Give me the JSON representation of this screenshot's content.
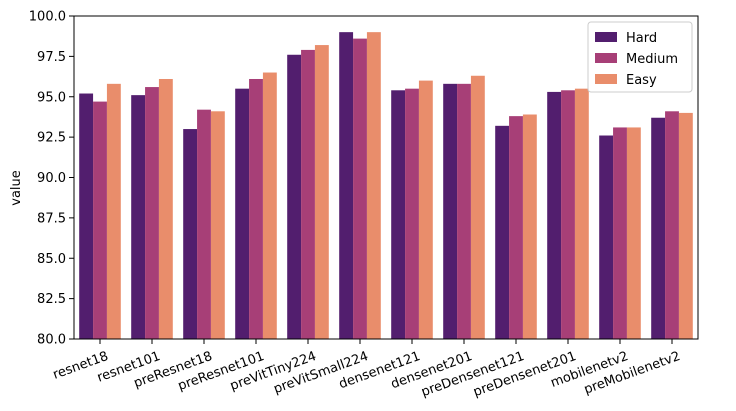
{
  "chart_data": {
    "type": "bar",
    "title": "",
    "xlabel": "",
    "ylabel": "value",
    "ylim": [
      80.0,
      100.0
    ],
    "yticks": [
      "80.0",
      "82.5",
      "85.0",
      "87.5",
      "90.0",
      "92.5",
      "95.0",
      "97.5",
      "100.0"
    ],
    "grid": false,
    "legend_position": "top-right",
    "categories": [
      "resnet18",
      "resnet101",
      "preResnet18",
      "preResnet101",
      "preVitTiny224",
      "preVitSmall224",
      "densenet121",
      "densenet201",
      "preDensenet121",
      "preDensenet201",
      "mobilenetv2",
      "preMobilenetv2"
    ],
    "series": [
      {
        "name": "Hard",
        "color": "#521e6e",
        "values": [
          95.2,
          95.1,
          93.0,
          95.5,
          97.6,
          99.0,
          95.4,
          95.8,
          93.2,
          95.3,
          92.6,
          93.7
        ]
      },
      {
        "name": "Medium",
        "color": "#a73f77",
        "values": [
          94.7,
          95.6,
          94.2,
          96.1,
          97.9,
          98.6,
          95.5,
          95.8,
          93.8,
          95.4,
          93.1,
          94.1
        ]
      },
      {
        "name": "Easy",
        "color": "#e98d6b",
        "values": [
          95.8,
          96.1,
          94.1,
          96.5,
          98.2,
          99.0,
          96.0,
          96.3,
          93.9,
          95.5,
          93.1,
          94.0
        ]
      }
    ]
  }
}
